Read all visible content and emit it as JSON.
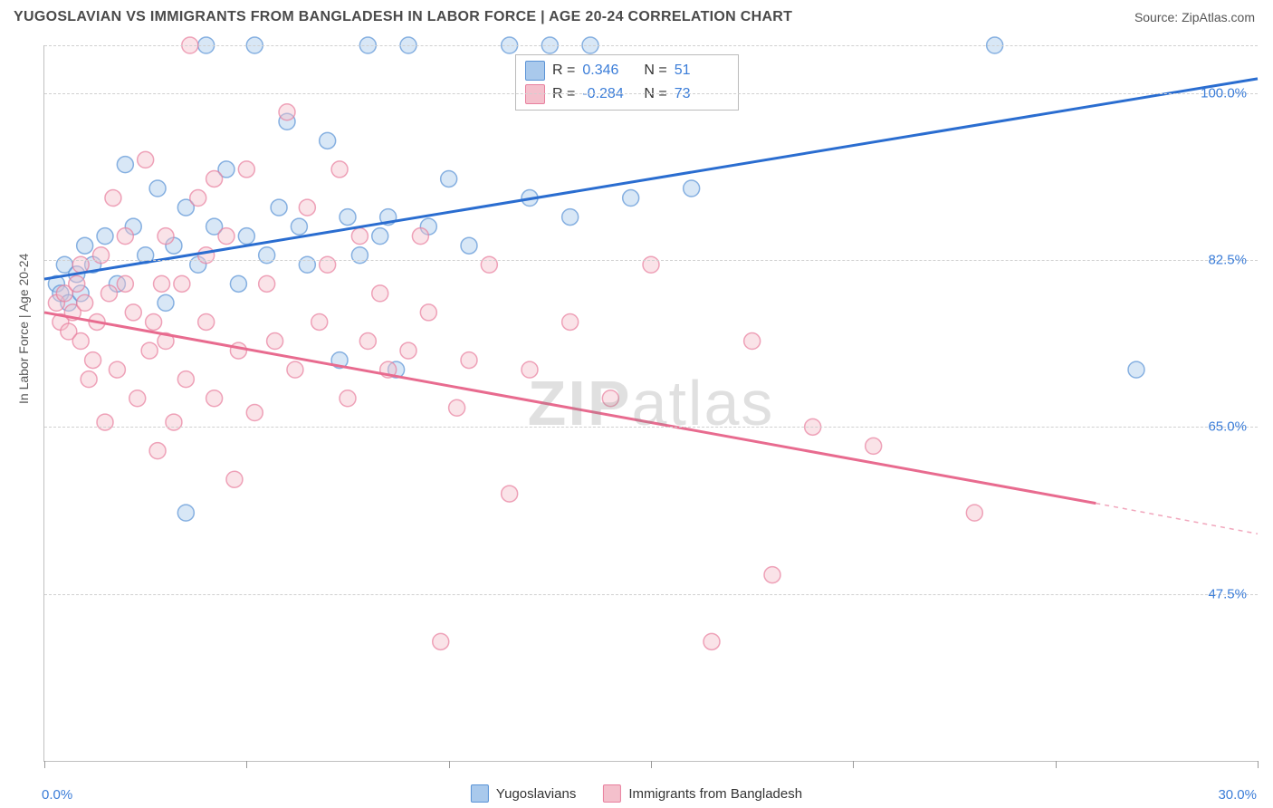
{
  "title": "YUGOSLAVIAN VS IMMIGRANTS FROM BANGLADESH IN LABOR FORCE | AGE 20-24 CORRELATION CHART",
  "source": "Source: ZipAtlas.com",
  "ylabel": "In Labor Force | Age 20-24",
  "watermark_bold": "ZIP",
  "watermark_light": "atlas",
  "chart": {
    "type": "scatter",
    "xlim": [
      0,
      30
    ],
    "ylim": [
      30,
      105
    ],
    "yticks": [
      {
        "v": 47.5,
        "label": "47.5%"
      },
      {
        "v": 65.0,
        "label": "65.0%"
      },
      {
        "v": 82.5,
        "label": "82.5%"
      },
      {
        "v": 100.0,
        "label": "100.0%"
      }
    ],
    "xtick_positions": [
      0,
      5,
      10,
      15,
      20,
      25,
      30
    ],
    "xtick_labels": {
      "min": "0.0%",
      "max": "30.0%"
    },
    "grid_color": "#d0d0d0",
    "axis_color": "#c0c0c0",
    "label_color": "#3b7dd8",
    "background": "#ffffff",
    "marker_radius": 9,
    "marker_opacity": 0.45,
    "marker_stroke_width": 1.5,
    "trend_line_width": 3
  },
  "series": [
    {
      "name": "Yugoslavians",
      "fill": "#a9c9ec",
      "stroke": "#5a93d6",
      "line_color": "#2a6dd0",
      "R": "0.346",
      "N": "51",
      "trend": {
        "x1": 0,
        "y1": 80.5,
        "x2": 30,
        "y2": 101.5
      },
      "points": [
        [
          0.3,
          80
        ],
        [
          0.4,
          79
        ],
        [
          0.5,
          82
        ],
        [
          0.6,
          78
        ],
        [
          0.8,
          81
        ],
        [
          0.9,
          79
        ],
        [
          1.0,
          84
        ],
        [
          1.2,
          82
        ],
        [
          1.5,
          85
        ],
        [
          1.8,
          80
        ],
        [
          2.0,
          92.5
        ],
        [
          2.2,
          86
        ],
        [
          2.5,
          83
        ],
        [
          2.8,
          90
        ],
        [
          3.0,
          78
        ],
        [
          3.2,
          84
        ],
        [
          3.5,
          88
        ],
        [
          3.8,
          82
        ],
        [
          4.0,
          105
        ],
        [
          4.2,
          86
        ],
        [
          4.5,
          92
        ],
        [
          4.8,
          80
        ],
        [
          5.0,
          85
        ],
        [
          5.2,
          105
        ],
        [
          5.5,
          83
        ],
        [
          5.8,
          88
        ],
        [
          6.0,
          97
        ],
        [
          6.3,
          86
        ],
        [
          6.5,
          82
        ],
        [
          7.0,
          95
        ],
        [
          7.3,
          72
        ],
        [
          7.5,
          87
        ],
        [
          7.8,
          83
        ],
        [
          8.0,
          105
        ],
        [
          8.3,
          85
        ],
        [
          8.5,
          87
        ],
        [
          8.7,
          71
        ],
        [
          9.0,
          105
        ],
        [
          9.5,
          86
        ],
        [
          10.0,
          91
        ],
        [
          10.5,
          84
        ],
        [
          11.5,
          105
        ],
        [
          12.0,
          89
        ],
        [
          12.5,
          105
        ],
        [
          13.0,
          87
        ],
        [
          13.5,
          105
        ],
        [
          14.5,
          89
        ],
        [
          16.0,
          90
        ],
        [
          23.5,
          105
        ],
        [
          27.0,
          71
        ],
        [
          3.5,
          56
        ]
      ]
    },
    {
      "name": "Immigrants from Bangladesh",
      "fill": "#f4c0cc",
      "stroke": "#e87f9e",
      "line_color": "#e86b8f",
      "R": "-0.284",
      "N": "73",
      "trend": {
        "x1": 0,
        "y1": 77.0,
        "x2": 26,
        "y2": 57.0
      },
      "trend_dash": {
        "x1": 26,
        "y1": 57.0,
        "x2": 30,
        "y2": 53.8
      },
      "points": [
        [
          0.3,
          78
        ],
        [
          0.4,
          76
        ],
        [
          0.5,
          79
        ],
        [
          0.6,
          75
        ],
        [
          0.7,
          77
        ],
        [
          0.8,
          80
        ],
        [
          0.9,
          74
        ],
        [
          1.0,
          78
        ],
        [
          1.2,
          72
        ],
        [
          1.3,
          76
        ],
        [
          1.5,
          65.5
        ],
        [
          1.6,
          79
        ],
        [
          1.8,
          71
        ],
        [
          2.0,
          85
        ],
        [
          2.2,
          77
        ],
        [
          2.3,
          68
        ],
        [
          2.5,
          93
        ],
        [
          2.7,
          76
        ],
        [
          2.8,
          62.5
        ],
        [
          3.0,
          74
        ],
        [
          3.2,
          65.5
        ],
        [
          3.4,
          80
        ],
        [
          3.5,
          70
        ],
        [
          3.8,
          89
        ],
        [
          4.0,
          76
        ],
        [
          4.2,
          68
        ],
        [
          4.5,
          85
        ],
        [
          4.7,
          59.5
        ],
        [
          4.8,
          73
        ],
        [
          5.0,
          92
        ],
        [
          5.2,
          66.5
        ],
        [
          5.5,
          80
        ],
        [
          5.7,
          74
        ],
        [
          6.0,
          98
        ],
        [
          6.2,
          71
        ],
        [
          6.5,
          88
        ],
        [
          6.8,
          76
        ],
        [
          7.0,
          82
        ],
        [
          7.3,
          92
        ],
        [
          7.5,
          68
        ],
        [
          7.8,
          85
        ],
        [
          8.0,
          74
        ],
        [
          8.3,
          79
        ],
        [
          8.5,
          71
        ],
        [
          9.0,
          73
        ],
        [
          9.3,
          85
        ],
        [
          9.5,
          77
        ],
        [
          9.8,
          42.5
        ],
        [
          10.2,
          67
        ],
        [
          10.5,
          72
        ],
        [
          11.0,
          82
        ],
        [
          11.5,
          58
        ],
        [
          12.0,
          71
        ],
        [
          13.0,
          76
        ],
        [
          14.0,
          68
        ],
        [
          15.0,
          82
        ],
        [
          16.5,
          42.5
        ],
        [
          17.5,
          74
        ],
        [
          18.0,
          49.5
        ],
        [
          19.0,
          65
        ],
        [
          20.5,
          63
        ],
        [
          23.0,
          56
        ],
        [
          3.6,
          105
        ],
        [
          4.2,
          91
        ],
        [
          2.0,
          80
        ],
        [
          1.4,
          83
        ],
        [
          0.9,
          82
        ],
        [
          1.1,
          70
        ],
        [
          2.6,
          73
        ],
        [
          3.0,
          85
        ],
        [
          4.0,
          83
        ],
        [
          1.7,
          89
        ],
        [
          2.9,
          80
        ]
      ]
    }
  ],
  "bottom_legend": [
    {
      "label": "Yugoslavians",
      "fill": "#a9c9ec",
      "stroke": "#5a93d6"
    },
    {
      "label": "Immigrants from Bangladesh",
      "fill": "#f4c0cc",
      "stroke": "#e87f9e"
    }
  ],
  "stats_labels": {
    "R": "R =",
    "N": "N ="
  }
}
